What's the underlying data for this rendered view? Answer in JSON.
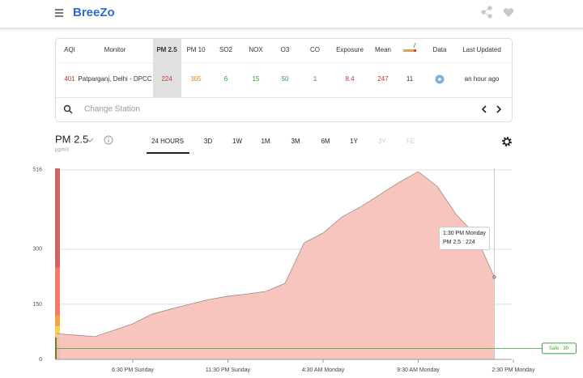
{
  "header": {
    "brand": "BreeZo"
  },
  "table": {
    "columns": [
      {
        "header": "AQI",
        "value": "401",
        "color": "#c0392b"
      },
      {
        "header": "Monitor",
        "value": "Patparganj, Delhi - DPCC",
        "color": "#333333"
      },
      {
        "header": "PM 2.5",
        "value": "224",
        "color": "#c0392b",
        "selected": true
      },
      {
        "header": "PM 10",
        "value": "305",
        "color": "#e67e22"
      },
      {
        "header": "SO2",
        "value": "6",
        "color": "#2e9e2e"
      },
      {
        "header": "NOX",
        "value": "15",
        "color": "#2e9e2e"
      },
      {
        "header": "O3",
        "value": "50",
        "color": "#2e9e2e"
      },
      {
        "header": "CO",
        "value": "1",
        "color": "#2e9e2e"
      },
      {
        "header": "Exposure",
        "value": "8.4",
        "color": "#c0392b"
      },
      {
        "header": "Mean",
        "value": "247",
        "color": "#c0392b"
      },
      {
        "value": "11",
        "color": "#333333"
      },
      {
        "header": "Data"
      },
      {
        "header": "Last Updated",
        "value": "an hour ago",
        "color": "#333333"
      }
    ],
    "search_placeholder": "Change Station"
  },
  "controls": {
    "pollutant": "PM 2.5",
    "unit": "µg/m3",
    "ranges": [
      {
        "label": "24 HOURS",
        "active": true
      },
      {
        "label": "3D"
      },
      {
        "label": "1W"
      },
      {
        "label": "1M"
      },
      {
        "label": "3M"
      },
      {
        "label": "6M"
      },
      {
        "label": "1Y"
      },
      {
        "label": "3Y",
        "disabled": true
      },
      {
        "label": "FE",
        "disabled": true
      }
    ]
  },
  "chart_data": {
    "type": "area",
    "color": "#f8c2ba",
    "line_color": "#9a8a88",
    "categories": [
      null,
      null,
      null,
      null,
      "6:30 PM Sunday",
      null,
      null,
      null,
      null,
      "11:30 PM Sunday",
      null,
      null,
      null,
      null,
      "4:30 AM Monday",
      null,
      null,
      null,
      null,
      "9:30 AM Monday",
      null,
      null,
      null,
      null,
      "2:30 PM Monday"
    ],
    "values": [
      70,
      66,
      62,
      79,
      97,
      123,
      137,
      150,
      163,
      172,
      178,
      185,
      207,
      317,
      344,
      388,
      416,
      449,
      482,
      511,
      471,
      394,
      339,
      224,
      null
    ],
    "ylim": [
      0,
      520
    ],
    "yticks": [
      0,
      150,
      300,
      516
    ],
    "grid": true,
    "bands": [
      {
        "to": 60,
        "color": "#6f7d30"
      },
      {
        "to": 90,
        "color": "#f2d34f"
      },
      {
        "to": 120,
        "color": "#f4a248"
      },
      {
        "to": 250,
        "color": "#f47a6a"
      },
      {
        "to": 520,
        "color": "#cf6565"
      }
    ],
    "threshold": {
      "value": 30,
      "label": "Safe : 30",
      "color": "#3aa33a"
    },
    "tooltip": {
      "time": "1:30 PM Monday",
      "label": "PM 2.5 : 224"
    }
  }
}
